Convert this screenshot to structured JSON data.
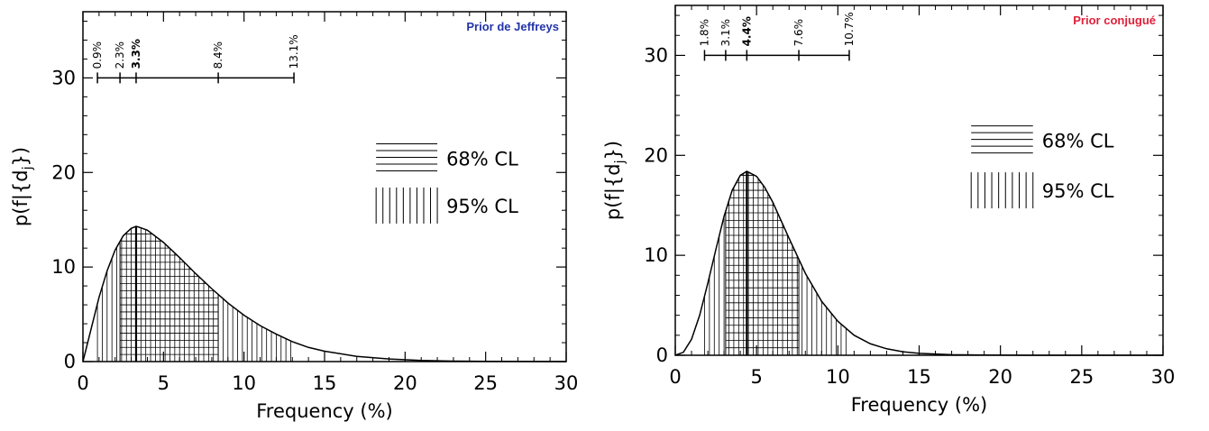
{
  "chart_data": [
    {
      "type": "area",
      "title": "Prior de Jeffreys",
      "title_color": "#2233aa",
      "xlabel": "Frequency (%)",
      "ylabel": "p(f|{d",
      "ylabel_sub": "j",
      "ylabel_end": "})",
      "xlim": [
        0,
        30
      ],
      "ylim": [
        0,
        37
      ],
      "xticks": [
        "0",
        "5",
        "10",
        "15",
        "20",
        "25",
        "30"
      ],
      "yticks": [
        "0",
        "10",
        "20",
        "30"
      ],
      "mode": 3.3,
      "ci68": [
        2.3,
        8.4
      ],
      "ci95": [
        0.9,
        13.1
      ],
      "ci_labels": [
        "0.9%",
        "2.3%",
        "3.3%",
        "8.4%",
        "13.1%"
      ],
      "ci_values": [
        0.9,
        2.3,
        3.3,
        8.4,
        13.1
      ],
      "ci_bar_y": 30,
      "legend": [
        "68% CL",
        "95% CL"
      ],
      "x": [
        0,
        0.5,
        1,
        1.5,
        2,
        2.5,
        3,
        3.3,
        3.5,
        4,
        5,
        6,
        7,
        8,
        9,
        10,
        11,
        12,
        13,
        14,
        15,
        17,
        19,
        21,
        23,
        25,
        30
      ],
      "y": [
        0,
        3.4,
        6.8,
        9.6,
        11.8,
        13.3,
        14.1,
        14.3,
        14.2,
        13.9,
        12.6,
        11.0,
        9.3,
        7.7,
        6.2,
        4.9,
        3.8,
        2.9,
        2.1,
        1.5,
        1.1,
        0.55,
        0.27,
        0.12,
        0.05,
        0.02,
        0
      ]
    },
    {
      "type": "area",
      "title": "Prior conjugué",
      "title_color": "#e0203a",
      "xlabel": "Frequency (%)",
      "ylabel": "p(f|{d",
      "ylabel_sub": "j",
      "ylabel_end": "})",
      "xlim": [
        0,
        30
      ],
      "ylim": [
        0,
        35
      ],
      "xticks": [
        "0",
        "5",
        "10",
        "15",
        "20",
        "25",
        "30"
      ],
      "yticks": [
        "0",
        "10",
        "20",
        "30"
      ],
      "mode": 4.4,
      "ci68": [
        3.1,
        7.6
      ],
      "ci95": [
        1.8,
        10.7
      ],
      "ci_labels": [
        "1.8%",
        "3.1%",
        "4.4%",
        "7.6%",
        "10.7%"
      ],
      "ci_values": [
        1.8,
        3.1,
        4.4,
        7.6,
        10.7
      ],
      "ci_bar_y": 30,
      "legend": [
        "68% CL",
        "95% CL"
      ],
      "x": [
        0,
        0.5,
        1,
        1.5,
        2,
        2.5,
        3,
        3.5,
        4,
        4.4,
        5,
        5.5,
        6,
        7,
        8,
        9,
        10,
        11,
        12,
        13,
        14,
        15,
        17,
        19,
        22,
        30
      ],
      "y": [
        0,
        0.3,
        1.6,
        4.0,
        7.2,
        10.6,
        13.9,
        16.5,
        18.0,
        18.4,
        17.9,
        16.8,
        15.3,
        11.7,
        8.2,
        5.4,
        3.4,
        2.0,
        1.15,
        0.65,
        0.35,
        0.19,
        0.06,
        0.02,
        0,
        0
      ]
    }
  ]
}
